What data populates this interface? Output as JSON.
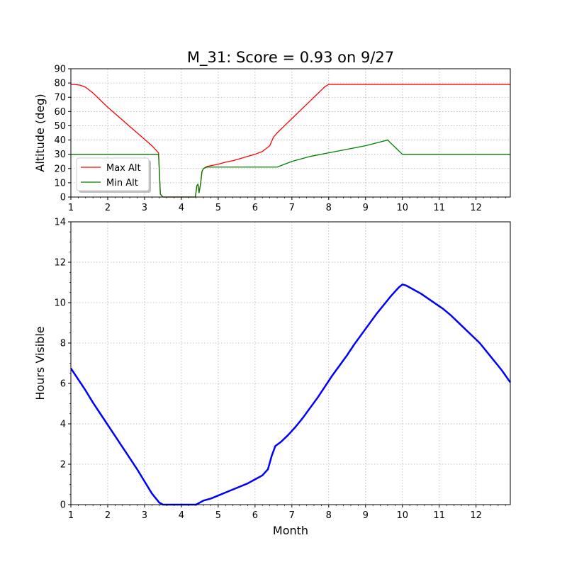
{
  "chart_data": [
    {
      "type": "line",
      "title": "M_31: Score = 0.93 on 9/27",
      "xlabel": "",
      "ylabel": "Altitude (deg)",
      "xlim": [
        1,
        12.93
      ],
      "ylim": [
        0,
        90
      ],
      "xticks": [
        1,
        2,
        3,
        4,
        5,
        6,
        7,
        8,
        9,
        10,
        11,
        12
      ],
      "yticks": [
        0,
        10,
        20,
        30,
        40,
        50,
        60,
        70,
        80,
        90
      ],
      "grid": true,
      "legend": "bottom-left",
      "series": [
        {
          "name": "Max Alt",
          "color": "#ff0000",
          "x": [
            1.0,
            1.1,
            1.25,
            1.4,
            1.6,
            1.8,
            2.0,
            2.2,
            2.4,
            2.6,
            2.8,
            3.0,
            3.2,
            3.38,
            3.43,
            3.5,
            3.6,
            3.8,
            4.0,
            4.2,
            4.38,
            4.42,
            4.45,
            4.48,
            4.52,
            4.56,
            4.6,
            4.7,
            4.8,
            5.0,
            5.2,
            5.4,
            5.6,
            5.8,
            6.0,
            6.2,
            6.4,
            6.5,
            6.6,
            6.8,
            7.0,
            7.2,
            7.4,
            7.6,
            7.8,
            7.9,
            8.0,
            8.5,
            9.0,
            10.0,
            11.0,
            12.0,
            12.93
          ],
          "y": [
            79,
            79,
            78.5,
            77,
            73,
            68,
            63,
            58.5,
            54,
            49.5,
            45,
            40.5,
            36,
            31,
            2,
            0,
            0,
            0,
            0,
            0,
            0,
            8,
            9,
            3,
            9,
            18,
            20,
            21.5,
            22,
            23,
            24.5,
            25.5,
            27,
            28.5,
            30,
            32,
            36,
            42,
            45,
            50,
            55,
            60,
            65,
            70,
            75,
            77.5,
            79,
            79,
            79,
            79,
            79,
            79,
            79
          ]
        },
        {
          "name": "Min Alt",
          "color": "#008000",
          "x": [
            1.0,
            1.5,
            2.0,
            2.5,
            3.0,
            3.38,
            3.43,
            3.5,
            3.6,
            3.8,
            4.0,
            4.2,
            4.38,
            4.42,
            4.45,
            4.48,
            4.52,
            4.56,
            4.6,
            4.7,
            4.8,
            5.0,
            5.2,
            5.5,
            6.0,
            6.3,
            6.6,
            6.8,
            7.0,
            7.5,
            8.0,
            8.5,
            9.0,
            9.3,
            9.6,
            9.8,
            10.0,
            10.3,
            11.0,
            12.0,
            12.93
          ],
          "y": [
            30,
            30,
            30,
            30,
            30,
            30,
            2,
            0,
            0,
            0,
            0,
            0,
            0,
            8,
            9,
            3,
            9,
            18,
            20,
            21,
            21,
            21,
            21,
            21,
            21,
            21,
            21,
            23,
            25,
            28.5,
            31,
            33.5,
            36,
            38,
            40,
            35,
            30,
            30,
            30,
            30,
            30
          ]
        }
      ]
    },
    {
      "type": "line",
      "title": "",
      "xlabel": "Month",
      "ylabel": "Hours Visible",
      "xlim": [
        1,
        12.93
      ],
      "ylim": [
        0,
        14
      ],
      "xticks": [
        1,
        2,
        3,
        4,
        5,
        6,
        7,
        8,
        9,
        10,
        11,
        12
      ],
      "yticks": [
        0,
        2,
        4,
        6,
        8,
        10,
        12,
        14
      ],
      "grid": true,
      "series": [
        {
          "color": "#0000ff",
          "x": [
            1.0,
            1.2,
            1.4,
            1.6,
            1.8,
            2.0,
            2.2,
            2.4,
            2.6,
            2.8,
            3.0,
            3.2,
            3.4,
            3.5,
            3.6,
            3.8,
            4.0,
            4.2,
            4.4,
            4.5,
            4.6,
            4.8,
            5.0,
            5.2,
            5.4,
            5.6,
            5.8,
            6.0,
            6.2,
            6.35,
            6.45,
            6.55,
            6.7,
            6.9,
            7.1,
            7.3,
            7.5,
            7.7,
            7.9,
            8.1,
            8.3,
            8.5,
            8.7,
            8.9,
            9.1,
            9.3,
            9.5,
            9.7,
            9.9,
            10.0,
            10.1,
            10.3,
            10.5,
            10.7,
            10.9,
            11.1,
            11.3,
            11.5,
            11.7,
            11.9,
            12.1,
            12.3,
            12.5,
            12.7,
            12.93
          ],
          "y": [
            6.75,
            6.2,
            5.65,
            5.05,
            4.5,
            3.95,
            3.4,
            2.85,
            2.3,
            1.75,
            1.15,
            0.55,
            0.1,
            0.0,
            0.0,
            0.0,
            0.0,
            0.0,
            0.0,
            0.1,
            0.2,
            0.3,
            0.45,
            0.6,
            0.75,
            0.9,
            1.05,
            1.25,
            1.45,
            1.75,
            2.4,
            2.9,
            3.1,
            3.45,
            3.85,
            4.3,
            4.8,
            5.3,
            5.85,
            6.4,
            6.9,
            7.4,
            7.95,
            8.45,
            8.95,
            9.45,
            9.9,
            10.35,
            10.75,
            10.9,
            10.85,
            10.65,
            10.45,
            10.2,
            9.95,
            9.7,
            9.4,
            9.05,
            8.7,
            8.35,
            8.0,
            7.55,
            7.1,
            6.65,
            6.05
          ]
        }
      ]
    }
  ]
}
